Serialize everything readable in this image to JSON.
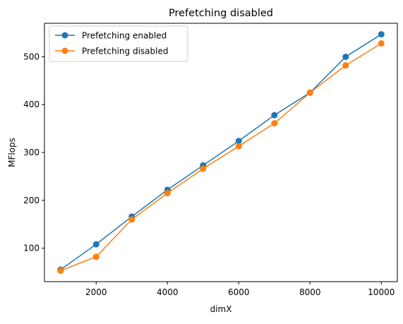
{
  "chart_data": {
    "type": "line",
    "title": "Prefetching disabled",
    "xlabel": "dimX",
    "ylabel": "MFlops",
    "xlim": [
      550,
      10450
    ],
    "ylim": [
      30,
      570
    ],
    "xticks": [
      2000,
      4000,
      6000,
      8000,
      10000
    ],
    "yticks": [
      100,
      200,
      300,
      400,
      500
    ],
    "grid": false,
    "legend_position": "top-left",
    "x": [
      1000,
      2000,
      3000,
      4000,
      5000,
      6000,
      7000,
      8000,
      9000,
      10000
    ],
    "series": [
      {
        "name": "Prefetching enabled",
        "color": "#1f77b4",
        "values": [
          55,
          108,
          166,
          222,
          273,
          324,
          378,
          425,
          500,
          547
        ]
      },
      {
        "name": "Prefetching disabled",
        "color": "#ff7f0e",
        "values": [
          53,
          82,
          160,
          215,
          266,
          313,
          361,
          425,
          482,
          528
        ]
      }
    ]
  }
}
